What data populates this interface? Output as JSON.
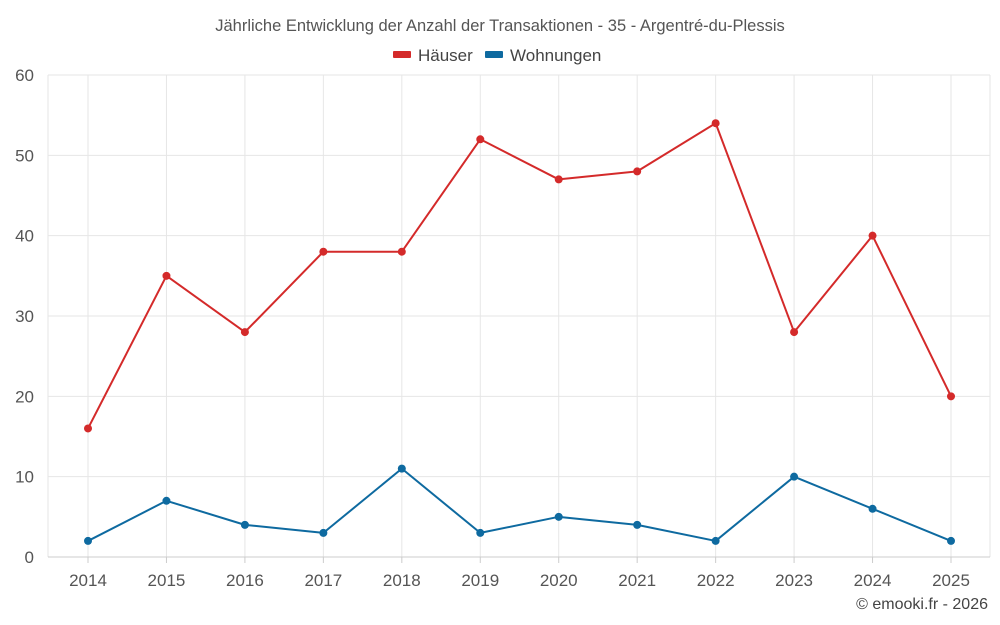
{
  "chart_data": {
    "type": "line",
    "title": "Jährliche Entwicklung der Anzahl der Transaktionen - 35 - Argentré-du-Plessis",
    "categories": [
      "2014",
      "2015",
      "2016",
      "2017",
      "2018",
      "2019",
      "2020",
      "2021",
      "2022",
      "2023",
      "2024",
      "2025"
    ],
    "series": [
      {
        "name": "Häuser",
        "color": "#d42a2a",
        "values": [
          16,
          35,
          28,
          38,
          38,
          52,
          47,
          48,
          54,
          28,
          40,
          20
        ]
      },
      {
        "name": "Wohnungen",
        "color": "#0e6aa0",
        "values": [
          2,
          7,
          4,
          3,
          11,
          3,
          5,
          4,
          2,
          10,
          6,
          2
        ]
      }
    ],
    "ylim": [
      0,
      60
    ],
    "yticks": [
      0,
      10,
      20,
      30,
      40,
      50,
      60
    ],
    "xlabel": "",
    "ylabel": "",
    "grid": true,
    "legend_position": "top-center"
  },
  "credit": "© emooki.fr - 2026"
}
